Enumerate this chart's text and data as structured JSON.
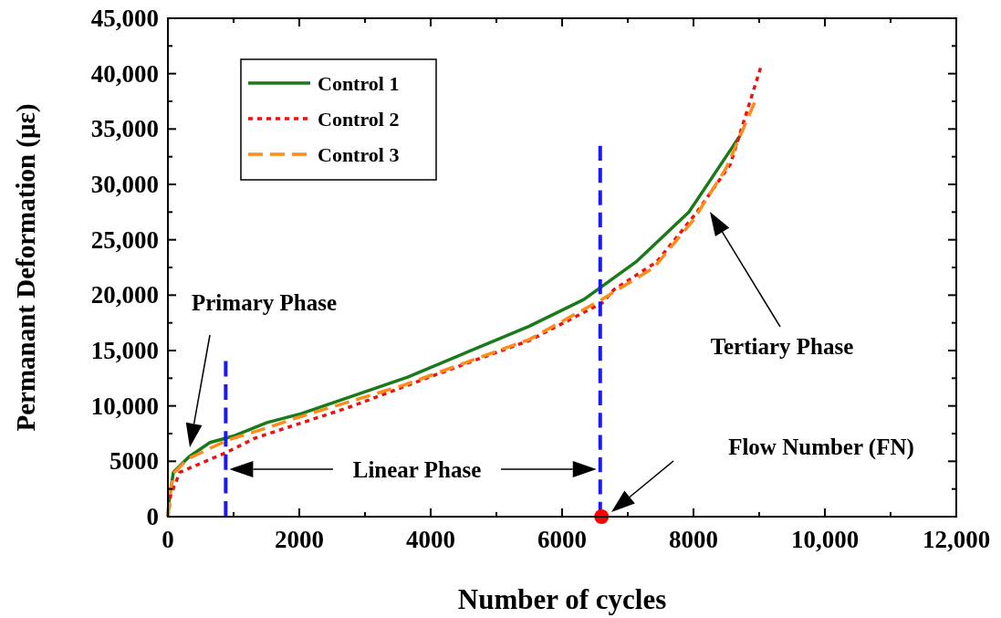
{
  "chart_data": {
    "type": "line",
    "xlabel": "Number of cycles",
    "ylabel": "Permanant Deformation (με)",
    "xlim": [
      0,
      12000
    ],
    "ylim": [
      0,
      45000
    ],
    "xticks": [
      0,
      {
        "value": 1000,
        "label": null
      },
      2000,
      {
        "value": 3000,
        "label": null
      },
      4000,
      {
        "value": 5000,
        "label": null
      },
      6000,
      {
        "value": 7000,
        "label": null
      },
      8000,
      {
        "value": 9000,
        "label": null
      },
      {
        "value": 10000,
        "label": "10,000"
      },
      {
        "value": 11000,
        "label": null
      },
      {
        "value": 12000,
        "label": "12,000"
      }
    ],
    "yticks": [
      0,
      {
        "value": 2500,
        "label": null
      },
      5000,
      {
        "value": 7500,
        "label": null
      },
      {
        "value": 10000,
        "label": "10,000"
      },
      {
        "value": 12500,
        "label": null
      },
      {
        "value": 15000,
        "label": "15,000"
      },
      {
        "value": 17500,
        "label": null
      },
      {
        "value": 20000,
        "label": "20,000"
      },
      {
        "value": 22500,
        "label": null
      },
      {
        "value": 25000,
        "label": "25,000"
      },
      {
        "value": 27500,
        "label": null
      },
      {
        "value": 30000,
        "label": "30,000"
      },
      {
        "value": 32500,
        "label": null
      },
      {
        "value": 35000,
        "label": "35,000"
      },
      {
        "value": 37500,
        "label": null
      },
      {
        "value": 40000,
        "label": "40,000"
      },
      {
        "value": 42500,
        "label": null
      },
      {
        "value": 45000,
        "label": "45,000"
      }
    ],
    "grid": false,
    "legend": "top left",
    "series": [
      {
        "name": "Control 1",
        "color": "#1a7a1a",
        "line_style": "solid",
        "x": [
          0,
          14,
          83,
          320,
          640,
          1010,
          1510,
          2030,
          3650,
          5500,
          6330,
          7125,
          7930,
          8720
        ],
        "values": [
          0,
          1300,
          4000,
          5400,
          6700,
          7300,
          8500,
          9300,
          12600,
          17200,
          19600,
          23000,
          27500,
          34500
        ]
      },
      {
        "name": "Control 2",
        "color": "#ee1111",
        "line_style": "dotted",
        "x": [
          0,
          40,
          180,
          890,
          1330,
          2720,
          4570,
          5500,
          6610,
          6790,
          7440,
          8040,
          8560,
          9020
        ],
        "values": [
          0,
          1900,
          4000,
          5800,
          7100,
          9800,
          13900,
          15900,
          19300,
          20500,
          23000,
          27400,
          31800,
          40500
        ]
      },
      {
        "name": "Control 3",
        "color": "#ff8c1a",
        "line_style": "dashed",
        "x": [
          0,
          40,
          100,
          300,
          900,
          1500,
          2000,
          3600,
          5500,
          6600,
          7400,
          8000,
          8500,
          8930
        ],
        "values": [
          0,
          2500,
          4000,
          5200,
          6900,
          8000,
          9000,
          11900,
          16000,
          19600,
          22500,
          26800,
          31500,
          37400
        ]
      },
      {
        "type": "line",
        "color": "#1a1aee",
        "line_style": "dashed",
        "x": [
          880,
          880
        ],
        "values": [
          0,
          14100
        ]
      },
      {
        "type": "line",
        "color": "#1a1aee",
        "line_style": "dashed",
        "x": [
          6580,
          6580
        ],
        "values": [
          0,
          33500
        ]
      },
      {
        "type": "scatter",
        "color": "#ff0000",
        "marker": "circle",
        "x": [
          6600
        ],
        "values": [
          0
        ]
      }
    ],
    "annotations": [
      "Primary Phase",
      "Linear Phase",
      "Tertiary Phase",
      "Flow Number (FN)"
    ]
  }
}
